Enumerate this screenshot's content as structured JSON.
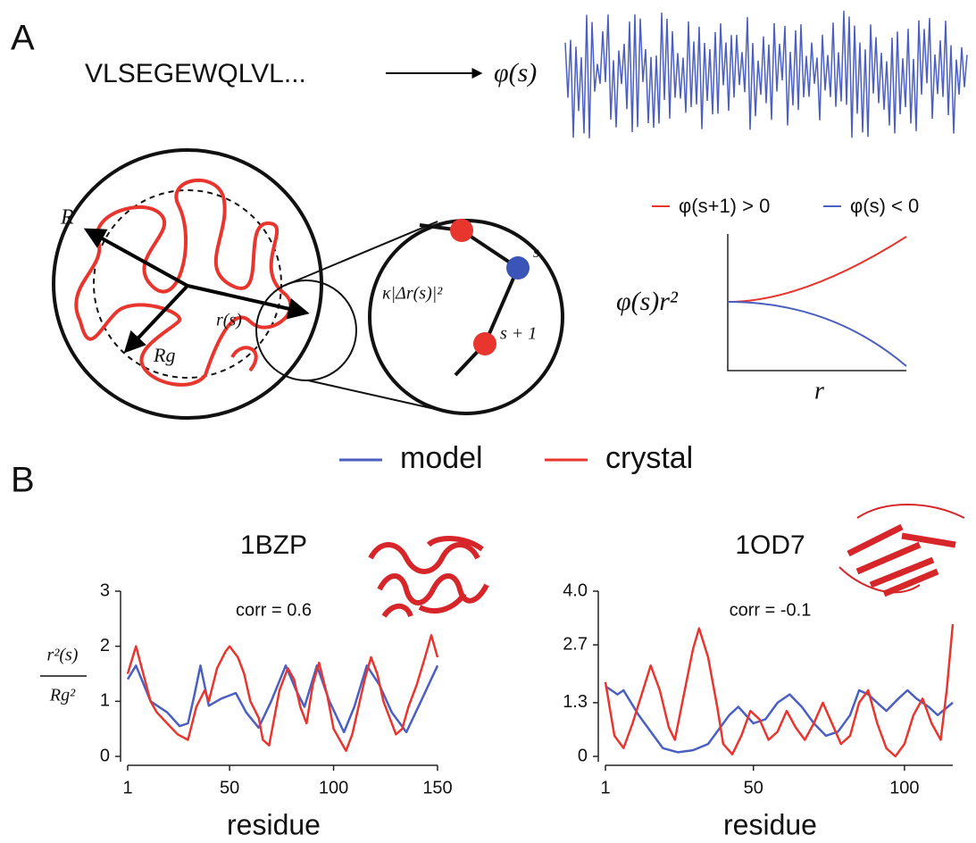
{
  "panel_a": {
    "label": "A",
    "sequence": "VLSEGEWQLVL...",
    "mapping": "φ(s)",
    "radius": "R",
    "gyration_radius": "Rg",
    "position": "r(s)",
    "energy": "κ|Δr(s)|²",
    "site_s": "s",
    "site_next": "s + 1",
    "legend": [
      "φ(s+1) > 0",
      "φ(s) < 0"
    ],
    "sketch_ylabel": "φ(s)r²",
    "sketch_xlabel": "r"
  },
  "panel_b": {
    "label": "B",
    "ylabel_numerator": "r²(s)",
    "ylabel_denominator": "Rg²"
  },
  "chart_data": [
    {
      "type": "line",
      "title": "1BZP",
      "annotation": "corr = 0.6",
      "xlabel": "residue",
      "xlim": [
        1,
        150
      ],
      "xticks": [
        1,
        50,
        100,
        150
      ],
      "ylim": [
        0,
        3
      ],
      "yticks": [
        0,
        1,
        2,
        3
      ],
      "series": [
        {
          "name": "model",
          "color": "#4a5fc1",
          "x": [
            1,
            5,
            12,
            20,
            26,
            30,
            33,
            36,
            40,
            46,
            53,
            58,
            64,
            70,
            77,
            82,
            86,
            92,
            98,
            105,
            110,
            116,
            122,
            128,
            135,
            142,
            150
          ],
          "values": [
            1.4,
            1.65,
            1.0,
            0.8,
            0.55,
            0.6,
            1.1,
            1.65,
            0.92,
            1.05,
            1.15,
            0.8,
            0.52,
            1.0,
            1.65,
            1.2,
            0.9,
            1.65,
            1.0,
            0.44,
            0.9,
            1.65,
            1.3,
            0.8,
            0.44,
            1.0,
            1.65
          ]
        },
        {
          "name": "crystal",
          "color": "#e8352e",
          "x": [
            1,
            5,
            12,
            15,
            20,
            25,
            30,
            34,
            38,
            40,
            44,
            48,
            50,
            54,
            57,
            60,
            64,
            66,
            69,
            71,
            74,
            78,
            81,
            84,
            87,
            90,
            93,
            97,
            100,
            103,
            106,
            109,
            112,
            115,
            118,
            121,
            124,
            127,
            130,
            133,
            136,
            140,
            144,
            147,
            150
          ],
          "values": [
            1.5,
            2.0,
            1.0,
            0.8,
            0.6,
            0.4,
            0.3,
            0.9,
            1.2,
            1.0,
            1.6,
            1.9,
            2.0,
            1.8,
            1.5,
            1.0,
            0.7,
            0.3,
            0.2,
            0.6,
            1.2,
            1.6,
            1.4,
            0.9,
            0.6,
            1.3,
            1.7,
            1.1,
            0.5,
            0.3,
            0.1,
            0.4,
            0.9,
            1.4,
            1.8,
            1.5,
            1.0,
            0.7,
            0.4,
            0.5,
            0.9,
            1.3,
            1.8,
            2.2,
            1.8
          ]
        }
      ]
    },
    {
      "type": "line",
      "title": "1OD7",
      "annotation": "corr = -0.1",
      "xlabel": "residue",
      "xlim": [
        1,
        116
      ],
      "xticks": [
        1,
        50,
        100
      ],
      "ylim": [
        0,
        4
      ],
      "yticks": [
        0,
        1.3,
        2.7,
        {
          "value": 4,
          "label": "4.0"
        }
      ],
      "series": [
        {
          "color": "#4a5fc1",
          "x": [
            1,
            5,
            7,
            12,
            17,
            20,
            25,
            30,
            35,
            38,
            42,
            45,
            50,
            54,
            58,
            62,
            66,
            70,
            74,
            78,
            82,
            85,
            88,
            91,
            94,
            98,
            101,
            104,
            108,
            111,
            116
          ],
          "values": [
            1.7,
            1.5,
            1.6,
            1.0,
            0.5,
            0.2,
            0.1,
            0.15,
            0.3,
            0.6,
            1.0,
            1.2,
            0.8,
            0.9,
            1.3,
            1.5,
            1.2,
            0.8,
            0.5,
            0.6,
            1.0,
            1.6,
            1.5,
            1.3,
            1.1,
            1.4,
            1.6,
            1.4,
            1.2,
            1.0,
            1.3
          ]
        },
        {
          "color": "#e8352e",
          "x": [
            1,
            4,
            7,
            10,
            13,
            16,
            19,
            22,
            24,
            27,
            30,
            32,
            35,
            38,
            40,
            43,
            46,
            49,
            52,
            55,
            58,
            61,
            64,
            67,
            70,
            73,
            76,
            79,
            82,
            85,
            88,
            91,
            94,
            97,
            100,
            103,
            106,
            109,
            112,
            114,
            116
          ],
          "values": [
            1.8,
            0.5,
            0.2,
            0.8,
            1.5,
            2.2,
            1.6,
            0.7,
            0.4,
            1.5,
            2.6,
            3.1,
            2.4,
            1.2,
            0.3,
            0.05,
            0.5,
            1.1,
            0.9,
            0.4,
            0.6,
            1.1,
            0.7,
            0.4,
            0.8,
            1.3,
            0.8,
            0.3,
            0.5,
            1.3,
            1.6,
            0.8,
            0.2,
            0,
            0.3,
            1.0,
            1.4,
            0.8,
            0.4,
            1.6,
            3.2
          ]
        }
      ]
    }
  ]
}
